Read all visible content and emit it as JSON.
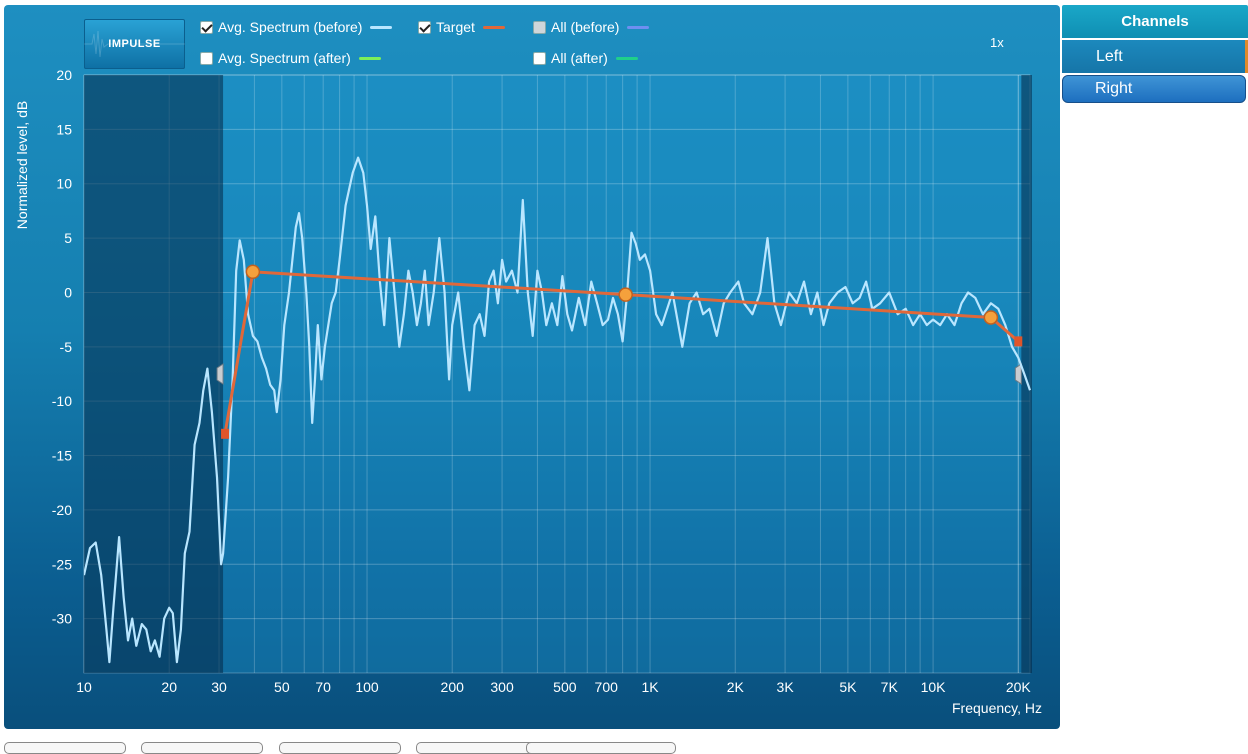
{
  "legend": {
    "avg_before": {
      "label": "Avg. Spectrum (before)",
      "checked": true,
      "color": "#b9e6ff"
    },
    "avg_after": {
      "label": "Avg. Spectrum (after)",
      "checked": false,
      "color": "#7cf05a"
    },
    "target": {
      "label": "Target",
      "checked": true,
      "color": "#e0683a"
    },
    "all_before": {
      "label": "All (before)",
      "checked": false,
      "color": "#6f8ff0"
    },
    "all_after": {
      "label": "All (after)",
      "checked": false,
      "color": "#1fd08a"
    }
  },
  "impulse_button": {
    "label": "IMPULSE"
  },
  "zoom_label": "1x",
  "sidebar": {
    "header": "Channels",
    "items": [
      {
        "label": "Left",
        "selected": true
      },
      {
        "label": "Right",
        "selected": false
      }
    ]
  },
  "chart_data": {
    "type": "line",
    "xlabel": "Frequency, Hz",
    "ylabel": "Normalized level, dB",
    "x_scale": "log",
    "xlim": [
      10,
      22000
    ],
    "ylim": [
      -35,
      20
    ],
    "x_ticks": [
      {
        "v": 10,
        "label": "10"
      },
      {
        "v": 20,
        "label": "20"
      },
      {
        "v": 30,
        "label": "30"
      },
      {
        "v": 50,
        "label": "50"
      },
      {
        "v": 70,
        "label": "70"
      },
      {
        "v": 100,
        "label": "100"
      },
      {
        "v": 200,
        "label": "200"
      },
      {
        "v": 300,
        "label": "300"
      },
      {
        "v": 500,
        "label": "500"
      },
      {
        "v": 700,
        "label": "700"
      },
      {
        "v": 1000,
        "label": "1K"
      },
      {
        "v": 2000,
        "label": "2K"
      },
      {
        "v": 3000,
        "label": "3K"
      },
      {
        "v": 5000,
        "label": "5K"
      },
      {
        "v": 7000,
        "label": "7K"
      },
      {
        "v": 10000,
        "label": "10K"
      },
      {
        "v": 20000,
        "label": "20K"
      }
    ],
    "y_ticks": [
      {
        "v": 20,
        "label": "20"
      },
      {
        "v": 15,
        "label": "15"
      },
      {
        "v": 10,
        "label": "10"
      },
      {
        "v": 5,
        "label": "5"
      },
      {
        "v": 0,
        "label": "0"
      },
      {
        "v": -5,
        "label": "-5"
      },
      {
        "v": -10,
        "label": "-10"
      },
      {
        "v": -15,
        "label": "-15"
      },
      {
        "v": -20,
        "label": "-20"
      },
      {
        "v": -25,
        "label": "-25"
      },
      {
        "v": -30,
        "label": "-30"
      }
    ],
    "excluded_below_hz": 31,
    "excluded_above_hz": 20500,
    "series": [
      {
        "key": "avg_before",
        "color": "#b9e6ff",
        "points": [
          [
            10,
            -26
          ],
          [
            10.5,
            -23.5
          ],
          [
            11,
            -23
          ],
          [
            11.5,
            -26
          ],
          [
            12,
            -31
          ],
          [
            12.3,
            -34
          ],
          [
            12.7,
            -29
          ],
          [
            13.3,
            -22.5
          ],
          [
            13.8,
            -28
          ],
          [
            14.3,
            -32
          ],
          [
            14.8,
            -30
          ],
          [
            15.3,
            -32.5
          ],
          [
            16,
            -30.5
          ],
          [
            16.6,
            -31
          ],
          [
            17.2,
            -33
          ],
          [
            17.8,
            -32
          ],
          [
            18.5,
            -33.5
          ],
          [
            19.2,
            -30
          ],
          [
            20,
            -29
          ],
          [
            20.6,
            -29.5
          ],
          [
            21.3,
            -34
          ],
          [
            22,
            -31
          ],
          [
            22.7,
            -24
          ],
          [
            23.6,
            -22
          ],
          [
            24.6,
            -14
          ],
          [
            25.6,
            -12
          ],
          [
            26.4,
            -9
          ],
          [
            27.3,
            -7
          ],
          [
            28.3,
            -11
          ],
          [
            29.5,
            -17
          ],
          [
            30.5,
            -25
          ],
          [
            31,
            -24
          ],
          [
            32.3,
            -17
          ],
          [
            33.5,
            -8
          ],
          [
            34.5,
            2
          ],
          [
            35.5,
            4.8
          ],
          [
            36.7,
            3
          ],
          [
            38,
            -2
          ],
          [
            39.5,
            -4
          ],
          [
            41,
            -4.5
          ],
          [
            42.5,
            -6
          ],
          [
            44,
            -7
          ],
          [
            45.5,
            -8.5
          ],
          [
            47,
            -9
          ],
          [
            48,
            -11
          ],
          [
            49.5,
            -8
          ],
          [
            51,
            -3
          ],
          [
            53,
            0
          ],
          [
            54.5,
            3
          ],
          [
            56,
            6
          ],
          [
            57.5,
            7.3
          ],
          [
            59,
            5
          ],
          [
            61,
            0
          ],
          [
            62.5,
            -5
          ],
          [
            64,
            -12
          ],
          [
            65.5,
            -8
          ],
          [
            67,
            -3
          ],
          [
            69,
            -8
          ],
          [
            71,
            -5
          ],
          [
            73,
            -3
          ],
          [
            75,
            -1
          ],
          [
            77.5,
            0
          ],
          [
            80,
            3
          ],
          [
            84,
            8
          ],
          [
            89,
            11
          ],
          [
            93,
            12.4
          ],
          [
            97,
            11
          ],
          [
            100,
            8
          ],
          [
            103,
            4
          ],
          [
            107,
            7
          ],
          [
            111,
            1
          ],
          [
            115,
            -3
          ],
          [
            120,
            5
          ],
          [
            125,
            0
          ],
          [
            130,
            -5
          ],
          [
            135,
            -2
          ],
          [
            140,
            2
          ],
          [
            145,
            0
          ],
          [
            150,
            -3
          ],
          [
            155,
            -1
          ],
          [
            160,
            2
          ],
          [
            165,
            -3
          ],
          [
            172,
            0
          ],
          [
            180,
            5
          ],
          [
            188,
            0
          ],
          [
            195,
            -8
          ],
          [
            200,
            -3
          ],
          [
            210,
            0
          ],
          [
            220,
            -5
          ],
          [
            230,
            -9
          ],
          [
            240,
            -3
          ],
          [
            250,
            -2
          ],
          [
            260,
            -4
          ],
          [
            270,
            1
          ],
          [
            280,
            2
          ],
          [
            290,
            -1
          ],
          [
            300,
            3
          ],
          [
            310,
            1
          ],
          [
            325,
            2
          ],
          [
            340,
            0
          ],
          [
            355,
            8.5
          ],
          [
            370,
            0
          ],
          [
            385,
            -4
          ],
          [
            400,
            2
          ],
          [
            415,
            0
          ],
          [
            430,
            -3
          ],
          [
            450,
            -1
          ],
          [
            470,
            -3
          ],
          [
            490,
            1.5
          ],
          [
            510,
            -2
          ],
          [
            530,
            -3.5
          ],
          [
            560,
            -0.5
          ],
          [
            590,
            -3
          ],
          [
            620,
            1
          ],
          [
            650,
            -1
          ],
          [
            680,
            -3
          ],
          [
            710,
            -2.5
          ],
          [
            740,
            -0.5
          ],
          [
            770,
            -2
          ],
          [
            800,
            -4.5
          ],
          [
            830,
            0
          ],
          [
            860,
            5.5
          ],
          [
            890,
            4.5
          ],
          [
            920,
            3
          ],
          [
            960,
            3.5
          ],
          [
            1000,
            2
          ],
          [
            1050,
            -2
          ],
          [
            1100,
            -3
          ],
          [
            1150,
            -1.5
          ],
          [
            1200,
            0
          ],
          [
            1300,
            -5
          ],
          [
            1380,
            -1
          ],
          [
            1460,
            0
          ],
          [
            1540,
            -2
          ],
          [
            1620,
            -1.5
          ],
          [
            1720,
            -4
          ],
          [
            1820,
            -1
          ],
          [
            1920,
            0
          ],
          [
            2050,
            1
          ],
          [
            2150,
            -1
          ],
          [
            2300,
            -2
          ],
          [
            2450,
            0
          ],
          [
            2600,
            5
          ],
          [
            2750,
            -1
          ],
          [
            2900,
            -3
          ],
          [
            3100,
            0
          ],
          [
            3300,
            -1
          ],
          [
            3500,
            1
          ],
          [
            3700,
            -2
          ],
          [
            3900,
            0
          ],
          [
            4100,
            -3
          ],
          [
            4300,
            -1
          ],
          [
            4600,
            0
          ],
          [
            4900,
            0.5
          ],
          [
            5200,
            -1
          ],
          [
            5500,
            -0.5
          ],
          [
            5800,
            1
          ],
          [
            6100,
            -1.5
          ],
          [
            6500,
            -1
          ],
          [
            7000,
            0
          ],
          [
            7500,
            -2
          ],
          [
            8000,
            -1.5
          ],
          [
            8500,
            -3
          ],
          [
            9000,
            -2
          ],
          [
            9500,
            -3
          ],
          [
            10000,
            -2.5
          ],
          [
            10600,
            -3
          ],
          [
            11200,
            -2
          ],
          [
            11900,
            -3
          ],
          [
            12600,
            -1
          ],
          [
            13300,
            0
          ],
          [
            14100,
            -0.5
          ],
          [
            15000,
            -2
          ],
          [
            16000,
            -1
          ],
          [
            17000,
            -1.5
          ],
          [
            18000,
            -3
          ],
          [
            19000,
            -5
          ],
          [
            20000,
            -6
          ],
          [
            21000,
            -7.5
          ],
          [
            22000,
            -9
          ]
        ]
      },
      {
        "key": "target",
        "color": "#e0683a",
        "points": [
          [
            31.5,
            -13
          ],
          [
            39.5,
            1.9
          ],
          [
            820,
            -0.2
          ],
          [
            16000,
            -2.3
          ],
          [
            20000,
            -4.5
          ]
        ],
        "handles": [
          [
            39.5,
            1.9
          ],
          [
            820,
            -0.2
          ],
          [
            16000,
            -2.3
          ]
        ],
        "ends": [
          [
            31.5,
            -13
          ],
          [
            20000,
            -4.5
          ]
        ]
      }
    ]
  }
}
